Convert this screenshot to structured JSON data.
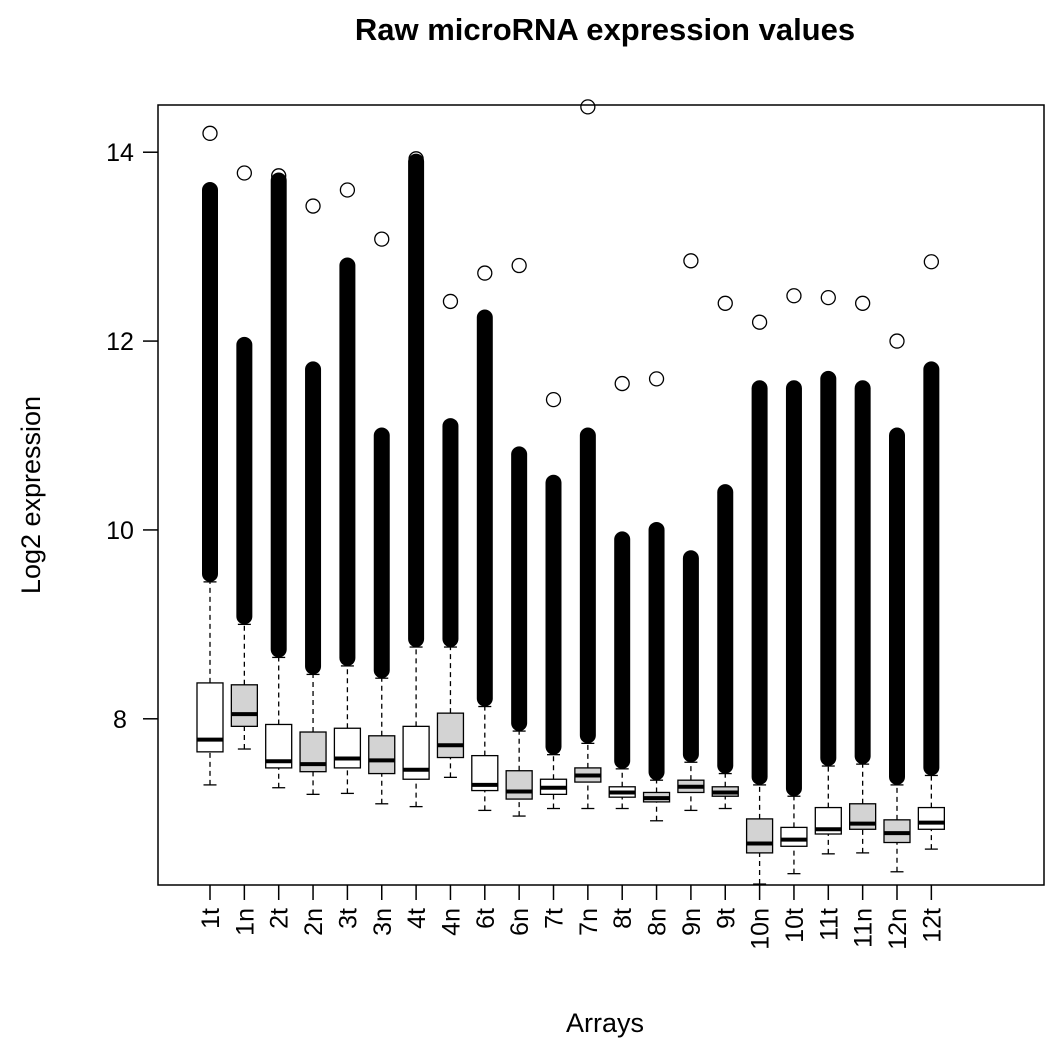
{
  "chart_data": {
    "type": "boxplot",
    "title": "Raw microRNA expression values",
    "x_label": "Arrays",
    "y_label": "Log2 expression",
    "ylim": [
      6.24,
      14.5
    ],
    "yticks": [
      8,
      10,
      12,
      14
    ],
    "boxes": [
      {
        "name": "1t",
        "color": "#ffffff",
        "whisker_low": 7.3,
        "q1": 7.65,
        "median": 7.78,
        "q3": 8.38,
        "whisker_high": 9.45,
        "dense_outlier_top": 13.6,
        "max_outlier": 14.2
      },
      {
        "name": "1n",
        "color": "#d3d3d3",
        "whisker_low": 7.68,
        "q1": 7.92,
        "median": 8.05,
        "q3": 8.36,
        "whisker_high": 9.0,
        "dense_outlier_top": 11.96,
        "max_outlier": 13.78
      },
      {
        "name": "2t",
        "color": "#ffffff",
        "whisker_low": 7.27,
        "q1": 7.48,
        "median": 7.55,
        "q3": 7.94,
        "whisker_high": 8.65,
        "dense_outlier_top": 13.7,
        "max_outlier": 13.75
      },
      {
        "name": "2n",
        "color": "#d3d3d3",
        "whisker_low": 7.2,
        "q1": 7.44,
        "median": 7.52,
        "q3": 7.86,
        "whisker_high": 8.47,
        "dense_outlier_top": 11.7,
        "max_outlier": 13.43
      },
      {
        "name": "3t",
        "color": "#ffffff",
        "whisker_low": 7.21,
        "q1": 7.48,
        "median": 7.58,
        "q3": 7.9,
        "whisker_high": 8.56,
        "dense_outlier_top": 12.8,
        "max_outlier": 13.6
      },
      {
        "name": "3n",
        "color": "#d3d3d3",
        "whisker_low": 7.1,
        "q1": 7.42,
        "median": 7.56,
        "q3": 7.82,
        "whisker_high": 8.43,
        "dense_outlier_top": 11.0,
        "max_outlier": 13.08
      },
      {
        "name": "4t",
        "color": "#ffffff",
        "whisker_low": 7.07,
        "q1": 7.36,
        "median": 7.46,
        "q3": 7.92,
        "whisker_high": 8.76,
        "dense_outlier_top": 13.9,
        "max_outlier": 13.93
      },
      {
        "name": "4n",
        "color": "#d3d3d3",
        "whisker_low": 7.38,
        "q1": 7.59,
        "median": 7.72,
        "q3": 8.06,
        "whisker_high": 8.76,
        "dense_outlier_top": 11.1,
        "max_outlier": 12.42
      },
      {
        "name": "6t",
        "color": "#ffffff",
        "whisker_low": 7.03,
        "q1": 7.24,
        "median": 7.3,
        "q3": 7.61,
        "whisker_high": 8.13,
        "dense_outlier_top": 12.25,
        "max_outlier": 12.72
      },
      {
        "name": "6n",
        "color": "#d3d3d3",
        "whisker_low": 6.97,
        "q1": 7.15,
        "median": 7.23,
        "q3": 7.45,
        "whisker_high": 7.87,
        "dense_outlier_top": 10.8,
        "max_outlier": 12.8
      },
      {
        "name": "7t",
        "color": "#ffffff",
        "whisker_low": 7.05,
        "q1": 7.2,
        "median": 7.27,
        "q3": 7.36,
        "whisker_high": 7.62,
        "dense_outlier_top": 10.5,
        "max_outlier": 11.38
      },
      {
        "name": "7n",
        "color": "#d3d3d3",
        "whisker_low": 7.05,
        "q1": 7.33,
        "median": 7.4,
        "q3": 7.48,
        "whisker_high": 7.74,
        "dense_outlier_top": 11.0,
        "max_outlier": 14.48
      },
      {
        "name": "8t",
        "color": "#ffffff",
        "whisker_low": 7.05,
        "q1": 7.17,
        "median": 7.22,
        "q3": 7.28,
        "whisker_high": 7.47,
        "dense_outlier_top": 9.9,
        "max_outlier": 11.55
      },
      {
        "name": "8n",
        "color": "#d3d3d3",
        "whisker_low": 6.92,
        "q1": 7.12,
        "median": 7.16,
        "q3": 7.22,
        "whisker_high": 7.35,
        "dense_outlier_top": 10.0,
        "max_outlier": 11.6
      },
      {
        "name": "9n",
        "color": "#d3d3d3",
        "whisker_low": 7.03,
        "q1": 7.22,
        "median": 7.28,
        "q3": 7.35,
        "whisker_high": 7.54,
        "dense_outlier_top": 9.7,
        "max_outlier": 12.85
      },
      {
        "name": "9t",
        "color": "#d3d3d3",
        "whisker_low": 7.05,
        "q1": 7.18,
        "median": 7.22,
        "q3": 7.28,
        "whisker_high": 7.42,
        "dense_outlier_top": 10.4,
        "max_outlier": 12.4
      },
      {
        "name": "10n",
        "color": "#d3d3d3",
        "whisker_low": 6.25,
        "q1": 6.58,
        "median": 6.68,
        "q3": 6.94,
        "whisker_high": 7.3,
        "dense_outlier_top": 11.5,
        "max_outlier": 12.2
      },
      {
        "name": "10t",
        "color": "#ffffff",
        "whisker_low": 6.36,
        "q1": 6.65,
        "median": 6.72,
        "q3": 6.85,
        "whisker_high": 7.18,
        "dense_outlier_top": 11.5,
        "max_outlier": 12.48
      },
      {
        "name": "11t",
        "color": "#ffffff",
        "whisker_low": 6.57,
        "q1": 6.78,
        "median": 6.83,
        "q3": 7.06,
        "whisker_high": 7.5,
        "dense_outlier_top": 11.6,
        "max_outlier": 12.46
      },
      {
        "name": "11n",
        "color": "#d3d3d3",
        "whisker_low": 6.58,
        "q1": 6.83,
        "median": 6.89,
        "q3": 7.1,
        "whisker_high": 7.52,
        "dense_outlier_top": 11.5,
        "max_outlier": 12.4
      },
      {
        "name": "12n",
        "color": "#d3d3d3",
        "whisker_low": 6.38,
        "q1": 6.69,
        "median": 6.79,
        "q3": 6.93,
        "whisker_high": 7.3,
        "dense_outlier_top": 11.0,
        "max_outlier": 12.0
      },
      {
        "name": "12t",
        "color": "#ffffff",
        "whisker_low": 6.62,
        "q1": 6.83,
        "median": 6.9,
        "q3": 7.06,
        "whisker_high": 7.4,
        "dense_outlier_top": 11.7,
        "max_outlier": 12.84
      }
    ]
  }
}
